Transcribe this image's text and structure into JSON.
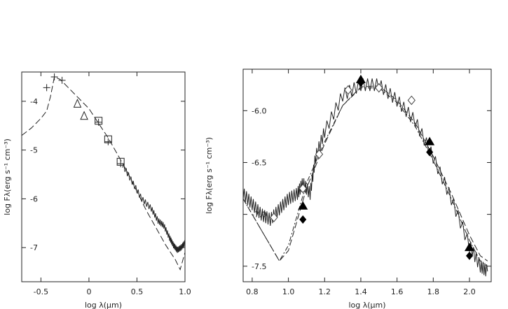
{
  "chart_data": [
    {
      "type": "line",
      "xlabel": "log λ(μm)",
      "ylabel": "log Fλ(erg s⁻¹ cm⁻³)",
      "xlim": [
        -0.7,
        1.0
      ],
      "ylim": [
        -7.7,
        -3.4
      ],
      "xticks": [
        -0.5,
        0.0,
        0.5,
        1.0
      ],
      "xtick_labels": [
        "-0.5",
        "0",
        "0.5",
        "1.0"
      ],
      "yticks": [
        -7,
        -6,
        -5,
        -4
      ],
      "ytick_labels": [
        "-7",
        "-6",
        "-5",
        "-4"
      ],
      "series": [
        {
          "style": "long-dash",
          "x": [
            -0.7,
            -0.6,
            -0.5,
            -0.44,
            -0.4,
            -0.36,
            -0.3,
            -0.2,
            -0.1,
            0.0,
            0.1,
            0.2,
            0.3,
            0.4,
            0.5,
            0.6,
            0.7,
            0.8,
            0.9,
            0.95,
            1.0
          ],
          "y": [
            -4.7,
            -4.55,
            -4.35,
            -4.2,
            -3.9,
            -3.5,
            -3.55,
            -3.75,
            -3.95,
            -4.15,
            -4.45,
            -4.75,
            -5.1,
            -5.45,
            -5.85,
            -6.25,
            -6.6,
            -6.95,
            -7.25,
            -7.45,
            -7.1
          ]
        },
        {
          "style": "solid-noisy",
          "x": [
            0.35,
            0.45,
            0.55,
            0.65,
            0.72,
            0.78,
            0.84,
            0.88,
            0.92,
            0.96,
            1.0
          ],
          "y": [
            -5.3,
            -5.65,
            -6.0,
            -6.2,
            -6.45,
            -6.55,
            -6.8,
            -6.95,
            -7.05,
            -7.0,
            -6.9
          ]
        }
      ],
      "markers": [
        {
          "symbol": "plus",
          "x": [
            -0.44,
            -0.36,
            -0.28,
            0.1,
            0.2,
            0.33
          ],
          "y": [
            -3.72,
            -3.5,
            -3.57,
            -4.43,
            -4.83,
            -5.28
          ]
        },
        {
          "symbol": "triangle-open",
          "x": [
            -0.12,
            -0.05
          ],
          "y": [
            -4.05,
            -4.3
          ]
        },
        {
          "symbol": "square-open",
          "x": [
            0.1,
            0.2,
            0.33
          ],
          "y": [
            -4.4,
            -4.78,
            -5.24
          ]
        }
      ]
    },
    {
      "type": "line",
      "xlabel": "log λ(μm)",
      "ylabel": "log Fλ(erg s⁻¹ cm⁻³)",
      "xlim": [
        0.75,
        2.12
      ],
      "ylim": [
        -7.65,
        -5.6
      ],
      "xticks": [
        0.8,
        1.0,
        1.2,
        1.4,
        1.6,
        1.8,
        2.0
      ],
      "xtick_labels": [
        "0.8",
        "1.0",
        "1.2",
        "1.4",
        "1.6",
        "1.8",
        "2.0"
      ],
      "yticks": [
        -7.5,
        -7.0,
        -6.5,
        -6.0
      ],
      "ytick_labels": [
        "-7.5",
        "-7.0",
        "-6.5",
        "-6.0"
      ],
      "series": [
        {
          "style": "solid-noisy",
          "x": [
            0.75,
            0.8,
            0.85,
            0.9,
            0.95,
            1.0,
            1.05,
            1.08,
            1.12,
            1.15,
            1.2,
            1.3,
            1.4,
            1.5,
            1.6,
            1.7,
            1.8,
            1.9,
            2.0,
            2.06,
            2.1
          ],
          "y": [
            -6.8,
            -6.9,
            -7.0,
            -7.05,
            -6.95,
            -6.85,
            -6.8,
            -6.7,
            -6.8,
            -6.45,
            -6.2,
            -5.85,
            -5.75,
            -5.75,
            -5.9,
            -6.1,
            -6.45,
            -6.85,
            -7.3,
            -7.5,
            -7.55
          ]
        },
        {
          "style": "dash-dot",
          "x": [
            0.75,
            0.8,
            0.85,
            0.9,
            0.95,
            1.0,
            1.05,
            1.1,
            1.2,
            1.3,
            1.4,
            1.5,
            1.6,
            1.7,
            1.8,
            1.9,
            2.0,
            2.06,
            2.1
          ],
          "y": [
            -6.85,
            -7.0,
            -7.15,
            -7.3,
            -7.45,
            -7.3,
            -7.0,
            -6.7,
            -6.3,
            -5.95,
            -5.78,
            -5.78,
            -5.92,
            -6.15,
            -6.48,
            -6.85,
            -7.25,
            -7.45,
            -7.5
          ]
        },
        {
          "style": "long-dash",
          "x": [
            0.75,
            0.8,
            0.85,
            0.9,
            0.95,
            1.0,
            1.05,
            1.1,
            1.2,
            1.3,
            1.4,
            1.5,
            1.6,
            1.7,
            1.8,
            1.9,
            2.0,
            2.06,
            2.1
          ],
          "y": [
            -6.85,
            -7.0,
            -7.15,
            -7.3,
            -7.45,
            -7.35,
            -7.05,
            -6.75,
            -6.32,
            -5.95,
            -5.77,
            -5.76,
            -5.9,
            -6.12,
            -6.44,
            -6.8,
            -7.2,
            -7.4,
            -7.45
          ]
        }
      ],
      "markers": [
        {
          "symbol": "diamond-open",
          "x": [
            0.92,
            1.08,
            1.17,
            1.33,
            1.5,
            1.68
          ],
          "y": [
            -7.03,
            -6.75,
            -6.42,
            -5.8,
            -5.78,
            -5.9
          ]
        },
        {
          "symbol": "triangle-filled",
          "x": [
            1.08,
            1.4,
            1.78,
            2.0
          ],
          "y": [
            -6.92,
            -5.7,
            -6.3,
            -7.32
          ]
        },
        {
          "symbol": "diamond-filled",
          "x": [
            1.08,
            1.4,
            1.78,
            2.0
          ],
          "y": [
            -7.05,
            -5.73,
            -6.4,
            -7.4
          ]
        }
      ]
    }
  ]
}
